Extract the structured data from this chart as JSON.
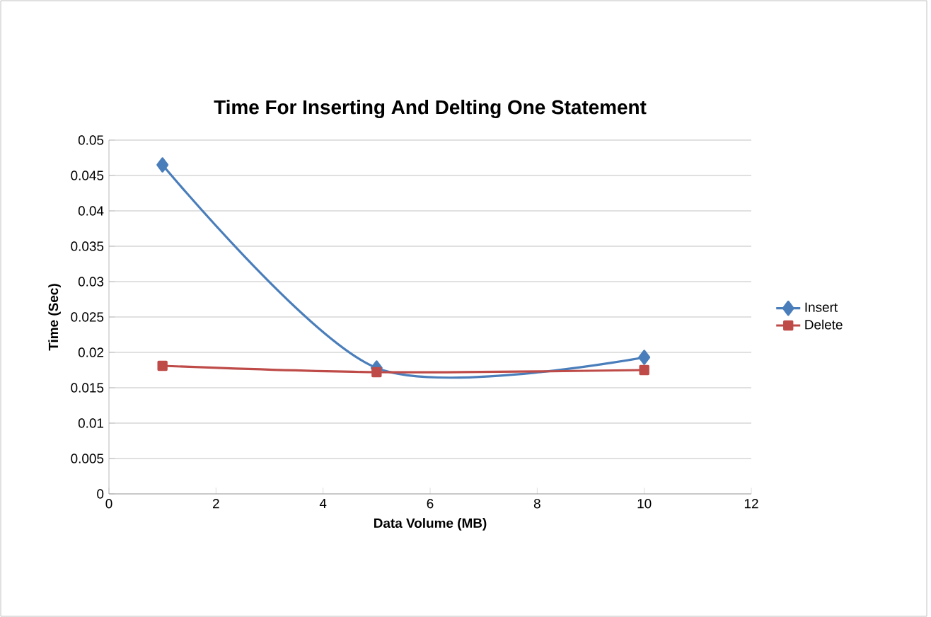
{
  "chart_data": {
    "type": "line",
    "title": "Time For Inserting And Delting One Statement",
    "xlabel": "Data Volume (MB)",
    "ylabel": "Time (Sec)",
    "x": [
      1,
      5,
      10
    ],
    "series": [
      {
        "name": "Insert",
        "color": "#4a7ebb",
        "marker": "diamond",
        "values": [
          0.0465,
          0.0178,
          0.0193
        ]
      },
      {
        "name": "Delete",
        "color": "#be4b48",
        "marker": "square",
        "values": [
          0.0181,
          0.0172,
          0.0175
        ]
      }
    ],
    "xlim": [
      0,
      12
    ],
    "xticks": [
      0,
      2,
      4,
      6,
      8,
      10,
      12
    ],
    "ylim": [
      0,
      0.05
    ],
    "yticks": [
      0,
      0.005,
      0.01,
      0.015,
      0.02,
      0.025,
      0.03,
      0.035,
      0.04,
      0.045,
      0.05
    ],
    "grid": "y",
    "legend": "right"
  }
}
